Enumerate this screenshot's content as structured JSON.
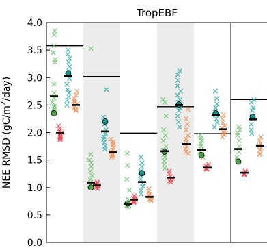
{
  "chart_data": {
    "type": "scatter",
    "title": "TropEBF",
    "xlabel": "",
    "ylabel": "NEE RMSD (gC/m²/day)",
    "ylabel_parts": {
      "main": "NEE RMSD (gC/m",
      "sup": "2",
      "tail": "/day)"
    },
    "ylim": [
      0,
      4
    ],
    "yticks": [
      "0.0",
      "0.5",
      "1.0",
      "1.5",
      "2.0",
      "2.5",
      "3.0",
      "3.5",
      "4.0"
    ],
    "grid": false,
    "legend": "none",
    "colors": {
      "green": "#6abf69",
      "red": "#e8424f",
      "teal": "#29aaa4",
      "orange": "#f08a4b",
      "green_dot": "#4a9f45",
      "teal_dot": "#168f8a",
      "shade": "#ececec",
      "line": "#000000"
    },
    "groups": [
      {
        "shaded": false,
        "reference": 3.58,
        "green": {
          "points": [
            3.85,
            3.78,
            3.58,
            3.45,
            3.33,
            3.28,
            2.88,
            2.72,
            2.62,
            2.55,
            2.48,
            2.45,
            2.42,
            2.38
          ],
          "mean": 2.66,
          "dot": 2.35
        },
        "red": {
          "points": [
            2.12,
            2.07,
            2.03,
            2.0,
            1.97,
            1.94,
            1.92,
            1.9,
            1.88,
            1.86
          ],
          "mean": 2.0,
          "dot": null
        },
        "teal": {
          "points": [
            3.5,
            3.42,
            3.35,
            3.28,
            3.2,
            3.12,
            3.05,
            2.98,
            2.88,
            2.78,
            2.72,
            2.65,
            2.58,
            2.5
          ],
          "mean": 3.03,
          "dot": 3.08
        },
        "orange": {
          "points": [
            2.75,
            2.68,
            2.62,
            2.58,
            2.55,
            2.52,
            2.48,
            2.45,
            2.42,
            2.4
          ],
          "mean": 2.5,
          "dot": null
        }
      },
      {
        "shaded": true,
        "reference": 3.02,
        "green": {
          "points": [
            3.53,
            1.6,
            1.5,
            1.45,
            1.38,
            1.3,
            1.22,
            1.15,
            1.1,
            1.05,
            1.0
          ],
          "mean": 1.09,
          "dot": 1.0
        },
        "red": {
          "points": [
            1.1,
            1.08,
            1.06,
            1.04,
            1.02,
            1.0,
            0.98
          ],
          "mean": 1.04,
          "dot": null
        },
        "teal": {
          "points": [
            2.78,
            2.28,
            2.15,
            2.05,
            1.98,
            1.92,
            1.88,
            1.82,
            1.75,
            1.7
          ],
          "mean": 2.02,
          "dot": 2.2
        },
        "orange": {
          "points": [
            1.88,
            1.82,
            1.78,
            1.73,
            1.68,
            1.65,
            1.6,
            1.58,
            1.55
          ],
          "mean": 1.64,
          "dot": null
        }
      },
      {
        "shaded": false,
        "reference": 1.99,
        "green": {
          "points": [
            1.62,
            1.4,
            1.15,
            0.95,
            0.78,
            0.72,
            0.68,
            0.66,
            0.65
          ],
          "mean": 0.7,
          "dot": 0.71
        },
        "red": {
          "points": [
            0.85,
            0.82,
            0.8,
            0.78,
            0.76,
            0.74,
            0.72
          ],
          "mean": 0.78,
          "dot": null
        },
        "teal": {
          "points": [
            1.55,
            1.45,
            1.38,
            1.3,
            1.22,
            1.15,
            1.08,
            1.02,
            0.95,
            0.88
          ],
          "mean": 1.1,
          "dot": 1.26
        },
        "orange": {
          "points": [
            0.98,
            0.92,
            0.88,
            0.85,
            0.82,
            0.8,
            0.78,
            0.76
          ],
          "mean": 0.83,
          "dot": null
        }
      },
      {
        "shaded": true,
        "reference": 2.47,
        "green": {
          "points": [
            2.6,
            2.55,
            2.3,
            2.05,
            1.95,
            1.85,
            1.75,
            1.68,
            1.6,
            1.55,
            1.48,
            1.42,
            1.35
          ],
          "mean": 1.66,
          "dot": 1.65
        },
        "red": {
          "points": [
            1.3,
            1.25,
            1.2,
            1.17,
            1.14,
            1.12,
            1.1
          ],
          "mean": 1.18,
          "dot": null
        },
        "teal": {
          "points": [
            3.12,
            3.05,
            2.95,
            2.85,
            2.75,
            2.68,
            2.6,
            2.55,
            2.5,
            2.45,
            2.4,
            2.3,
            2.2,
            2.1
          ],
          "mean": 2.5,
          "dot": 2.51
        },
        "orange": {
          "points": [
            2.42,
            2.25,
            2.15,
            2.05,
            1.95,
            1.88,
            1.82,
            1.75,
            1.7,
            1.65,
            1.62
          ],
          "mean": 1.79,
          "dot": null
        }
      },
      {
        "shaded": false,
        "reference": 1.98,
        "green": {
          "points": [
            1.95,
            1.9,
            1.85,
            1.8,
            1.75,
            1.7,
            1.65,
            1.6,
            1.55
          ],
          "mean": 1.68,
          "dot": 1.59
        },
        "red": {
          "points": [
            1.42,
            1.39,
            1.37,
            1.35,
            1.34,
            1.33
          ],
          "mean": 1.36,
          "dot": null
        },
        "teal": {
          "points": [
            2.75,
            2.62,
            2.52,
            2.45,
            2.38,
            2.32,
            2.25,
            2.18,
            2.1
          ],
          "mean": 2.32,
          "dot": 2.35
        },
        "orange": {
          "points": [
            2.32,
            2.25,
            2.18,
            2.12,
            2.08,
            2.04,
            2.0,
            1.96,
            1.92
          ],
          "mean": 2.06,
          "dot": null
        }
      },
      {
        "shaded": false,
        "reference": 2.6,
        "green": {
          "points": [
            2.1,
            2.05,
            2.0,
            1.95,
            1.85,
            1.75,
            1.65,
            1.55,
            1.5
          ],
          "mean": 1.7,
          "dot": 1.47
        },
        "red": {
          "points": [
            1.3,
            1.28,
            1.26,
            1.25,
            1.24,
            1.23
          ],
          "mean": 1.27,
          "dot": null
        },
        "teal": {
          "points": [
            2.6,
            2.55,
            2.45,
            2.4,
            2.3,
            2.25,
            2.15,
            2.05,
            1.98
          ],
          "mean": 2.24,
          "dot": 2.29
        },
        "orange": {
          "points": [
            1.92,
            1.85,
            1.8,
            1.76,
            1.72,
            1.68,
            1.62,
            1.6
          ],
          "mean": 1.76,
          "dot": null
        }
      }
    ]
  }
}
